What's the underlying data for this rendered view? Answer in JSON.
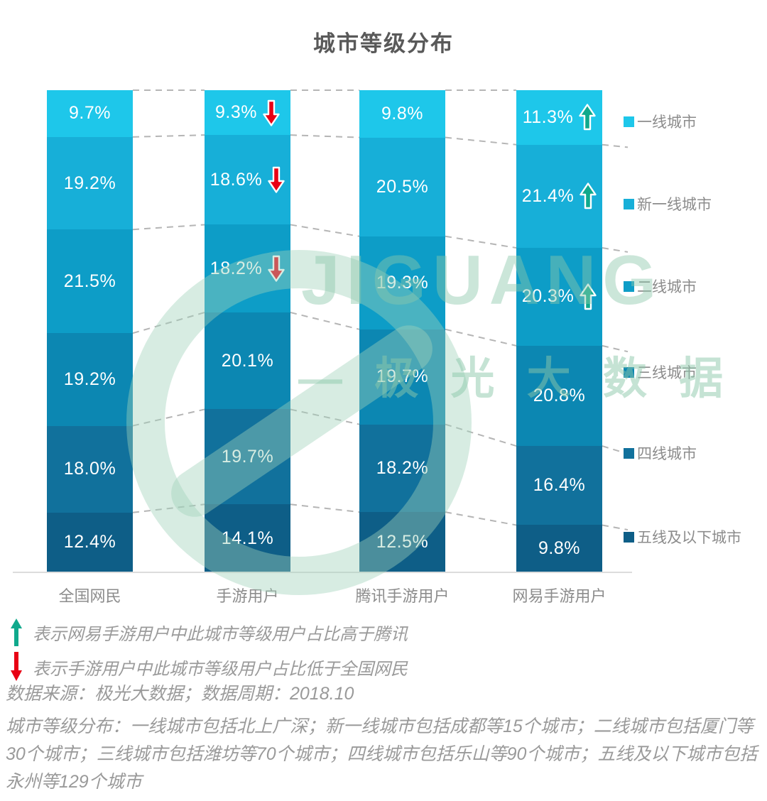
{
  "title": "城市等级分布",
  "chart_data": {
    "type": "bar",
    "stacked": true,
    "orientation": "vertical",
    "unit": "%",
    "ylim": [
      0,
      100
    ],
    "grid": false,
    "legend_position": "right",
    "categories": [
      "全国网民",
      "手游用户",
      "腾讯手游用户",
      "网易手游用户"
    ],
    "series": [
      {
        "name": "一线城市",
        "color": "#1ec7ea",
        "values": [
          9.7,
          9.3,
          9.8,
          11.3
        ]
      },
      {
        "name": "新一线城市",
        "color": "#17afd8",
        "values": [
          19.2,
          18.6,
          20.5,
          21.4
        ]
      },
      {
        "name": "二线城市",
        "color": "#0d9dc7",
        "values": [
          21.5,
          18.2,
          19.3,
          20.3
        ]
      },
      {
        "name": "三线城市",
        "color": "#0c87b2",
        "values": [
          19.2,
          20.1,
          19.7,
          20.8
        ]
      },
      {
        "name": "四线城市",
        "color": "#11719c",
        "values": [
          18.0,
          19.7,
          18.2,
          16.4
        ]
      },
      {
        "name": "五线及以下城市",
        "color": "#0e5e87",
        "values": [
          12.4,
          14.1,
          12.5,
          9.8
        ]
      }
    ],
    "arrows": [
      {
        "category_index": 1,
        "series_index": 0,
        "direction": "down"
      },
      {
        "category_index": 1,
        "series_index": 1,
        "direction": "down"
      },
      {
        "category_index": 1,
        "series_index": 2,
        "direction": "down"
      },
      {
        "category_index": 3,
        "series_index": 0,
        "direction": "up"
      },
      {
        "category_index": 3,
        "series_index": 1,
        "direction": "up"
      },
      {
        "category_index": 3,
        "series_index": 2,
        "direction": "up"
      }
    ]
  },
  "annotations": {
    "up_note": "表示网易手游用户中此城市等级用户占比高于腾讯",
    "down_note": "表示手游用户中此城市等级用户占比低于全国网民",
    "source": "数据来源：极光大数据；数据周期：2018.10"
  },
  "footnote": "城市等级分布：一线城市包括北上广深；新一线城市包括成都等15个城市；二线城市包括厦门等30个城市；三线城市包括潍坊等70个城市；四线城市包括乐山等90个城市；五线及以下城市包括永州等129个城市",
  "watermark": {
    "text_en": "JIGUANG",
    "text_cn": "— 极 光 大 数 据"
  },
  "colors": {
    "arrow_up": "#10a98c",
    "arrow_down": "#e8randomize0014",
    "arrow_down_fix": "#e80014",
    "title_text": "#595959",
    "axis_text": "#8c8c8c",
    "note_text": "#9a9a9a",
    "dash_line": "#b5b5b5"
  }
}
